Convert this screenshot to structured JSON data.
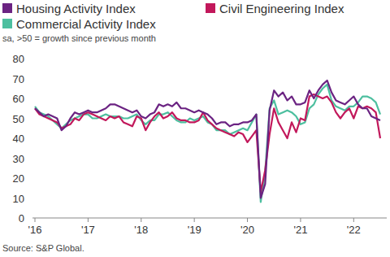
{
  "chart_data": {
    "type": "line",
    "subtitle": "sa, >50 = growth since previous month",
    "source": "Source: S&P Global.",
    "categories": [
      "'16",
      null,
      null,
      null,
      null,
      null,
      null,
      null,
      null,
      null,
      null,
      null,
      "'17",
      null,
      null,
      null,
      null,
      null,
      null,
      null,
      null,
      null,
      null,
      null,
      "'18",
      null,
      null,
      null,
      null,
      null,
      null,
      null,
      null,
      null,
      null,
      null,
      "'19",
      null,
      null,
      null,
      null,
      null,
      null,
      null,
      null,
      null,
      null,
      null,
      "'20",
      null,
      null,
      null,
      null,
      null,
      null,
      null,
      null,
      null,
      null,
      null,
      "'21",
      null,
      null,
      null,
      null,
      null,
      null,
      null,
      null,
      null,
      null,
      null,
      "'22",
      null,
      null,
      null,
      null,
      null,
      null
    ],
    "series": [
      {
        "name": "Housing Activity Index",
        "color": "#6b2382",
        "values": [
          55,
          53,
          51,
          52,
          51,
          50,
          44,
          46,
          50,
          53,
          52,
          53,
          54,
          53,
          53,
          54,
          55,
          57,
          57,
          56,
          55,
          54,
          53,
          54,
          51,
          50,
          52,
          53,
          57,
          56,
          57,
          56,
          58,
          55,
          55,
          54,
          53,
          54,
          53,
          52,
          50,
          47,
          48,
          48,
          46,
          47,
          47,
          48,
          48,
          49,
          52,
          10,
          17,
          54,
          64,
          61,
          63,
          59,
          61,
          57,
          57,
          58,
          64,
          60,
          64,
          67,
          69,
          63,
          59,
          58,
          57,
          59,
          61,
          57,
          55,
          55,
          51,
          50,
          49
        ]
      },
      {
        "name": "Civil Engineering Index",
        "color": "#c2185b",
        "values": [
          55,
          52,
          51,
          50,
          49,
          48,
          45,
          46,
          47,
          50,
          49,
          52,
          53,
          52,
          51,
          50,
          49,
          51,
          50,
          51,
          48,
          47,
          46,
          51,
          50,
          44,
          48,
          51,
          53,
          50,
          51,
          53,
          50,
          49,
          49,
          48,
          48,
          49,
          53,
          49,
          47,
          45,
          44,
          43,
          42,
          41,
          43,
          42,
          38,
          41,
          44,
          13,
          24,
          42,
          55,
          48,
          44,
          40,
          48,
          43,
          50,
          49,
          61,
          62,
          61,
          60,
          61,
          58,
          53,
          50,
          53,
          55,
          50,
          56,
          55,
          56,
          55,
          53,
          40
        ]
      },
      {
        "name": "Commercial Activity Index",
        "color": "#4dbf9f",
        "values": [
          56,
          53,
          52,
          51,
          49,
          47,
          45,
          47,
          49,
          50,
          51,
          52,
          52,
          50,
          50,
          51,
          52,
          51,
          51,
          51,
          50,
          50,
          51,
          52,
          49,
          47,
          49,
          49,
          52,
          52,
          53,
          51,
          49,
          48,
          48,
          50,
          49,
          50,
          51,
          48,
          47,
          44,
          44,
          44,
          42,
          43,
          44,
          45,
          44,
          48,
          52,
          8,
          23,
          55,
          59,
          52,
          53,
          54,
          53,
          51,
          47,
          48,
          55,
          57,
          62,
          65,
          67,
          59,
          56,
          55,
          54,
          56,
          56,
          58,
          61,
          61,
          60,
          58,
          52
        ]
      }
    ],
    "ylim": [
      0,
      80
    ],
    "yticks": [
      0,
      10,
      20,
      30,
      40,
      50,
      60,
      70,
      80
    ],
    "grid": false,
    "legend": "top"
  }
}
